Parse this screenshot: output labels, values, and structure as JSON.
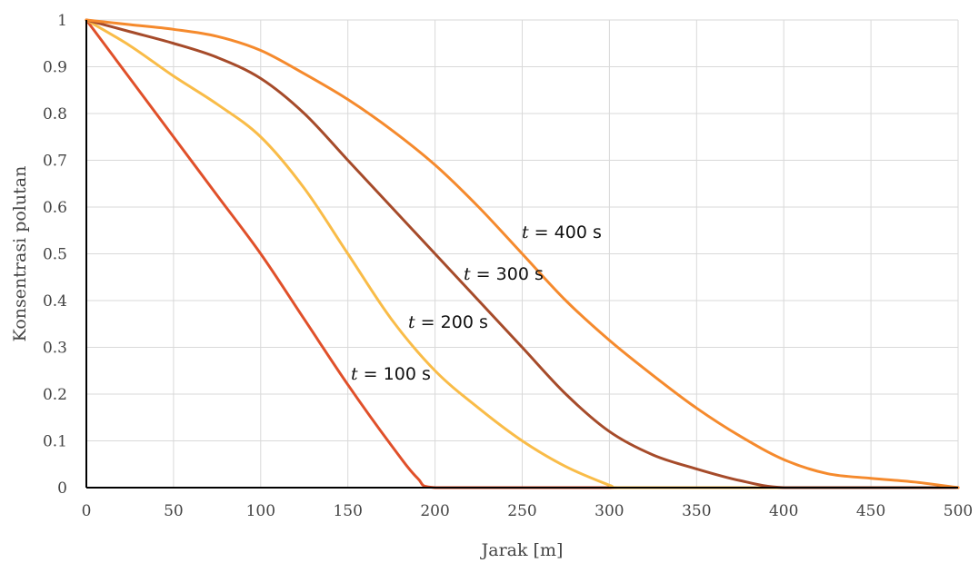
{
  "chart_data": {
    "type": "line",
    "title": "",
    "xlabel": "Jarak [m]",
    "ylabel": "Konsentrasi polutan",
    "xlim": [
      0,
      500
    ],
    "ylim": [
      0,
      1
    ],
    "xticks": [
      0,
      50,
      100,
      150,
      200,
      250,
      300,
      350,
      400,
      450,
      500
    ],
    "yticks": [
      0,
      0.1,
      0.2,
      0.3,
      0.4,
      0.5,
      0.6,
      0.7,
      0.8,
      0.9,
      1
    ],
    "grid": true,
    "legend": "none",
    "series": [
      {
        "label_prefix": "t",
        "label_suffix": " = 100 s",
        "color": "#E0502A",
        "x": [
          0,
          25,
          50,
          75,
          100,
          125,
          150,
          175,
          190,
          200,
          250,
          300,
          350,
          400,
          450,
          500
        ],
        "y": [
          1,
          0.875,
          0.75,
          0.625,
          0.5,
          0.36,
          0.22,
          0.09,
          0.02,
          0,
          0,
          0,
          0,
          0,
          0,
          0
        ]
      },
      {
        "label_prefix": "t",
        "label_suffix": " = 200 s",
        "color": "#F9BC48",
        "x": [
          0,
          25,
          50,
          75,
          100,
          125,
          150,
          175,
          200,
          225,
          250,
          275,
          300,
          305,
          350,
          400,
          450,
          500
        ],
        "y": [
          1,
          0.945,
          0.88,
          0.82,
          0.75,
          0.64,
          0.5,
          0.36,
          0.25,
          0.17,
          0.1,
          0.045,
          0.005,
          0,
          0,
          0,
          0,
          0
        ]
      },
      {
        "label_prefix": "t",
        "label_suffix": " = 300 s",
        "color": "#A64B2A",
        "x": [
          0,
          25,
          50,
          75,
          100,
          125,
          150,
          175,
          200,
          225,
          250,
          275,
          300,
          325,
          350,
          375,
          400,
          450,
          500
        ],
        "y": [
          1,
          0.975,
          0.95,
          0.92,
          0.875,
          0.8,
          0.7,
          0.6,
          0.5,
          0.4,
          0.3,
          0.2,
          0.12,
          0.07,
          0.04,
          0.015,
          0,
          0,
          0
        ]
      },
      {
        "label_prefix": "t",
        "label_suffix": " = 400 s",
        "color": "#F58A2D",
        "x": [
          0,
          25,
          50,
          75,
          100,
          125,
          150,
          175,
          200,
          225,
          250,
          275,
          300,
          325,
          350,
          375,
          400,
          425,
          450,
          475,
          500
        ],
        "y": [
          1,
          0.99,
          0.98,
          0.965,
          0.935,
          0.885,
          0.83,
          0.765,
          0.69,
          0.6,
          0.5,
          0.4,
          0.315,
          0.24,
          0.17,
          0.11,
          0.06,
          0.03,
          0.02,
          0.012,
          0
        ]
      }
    ]
  }
}
